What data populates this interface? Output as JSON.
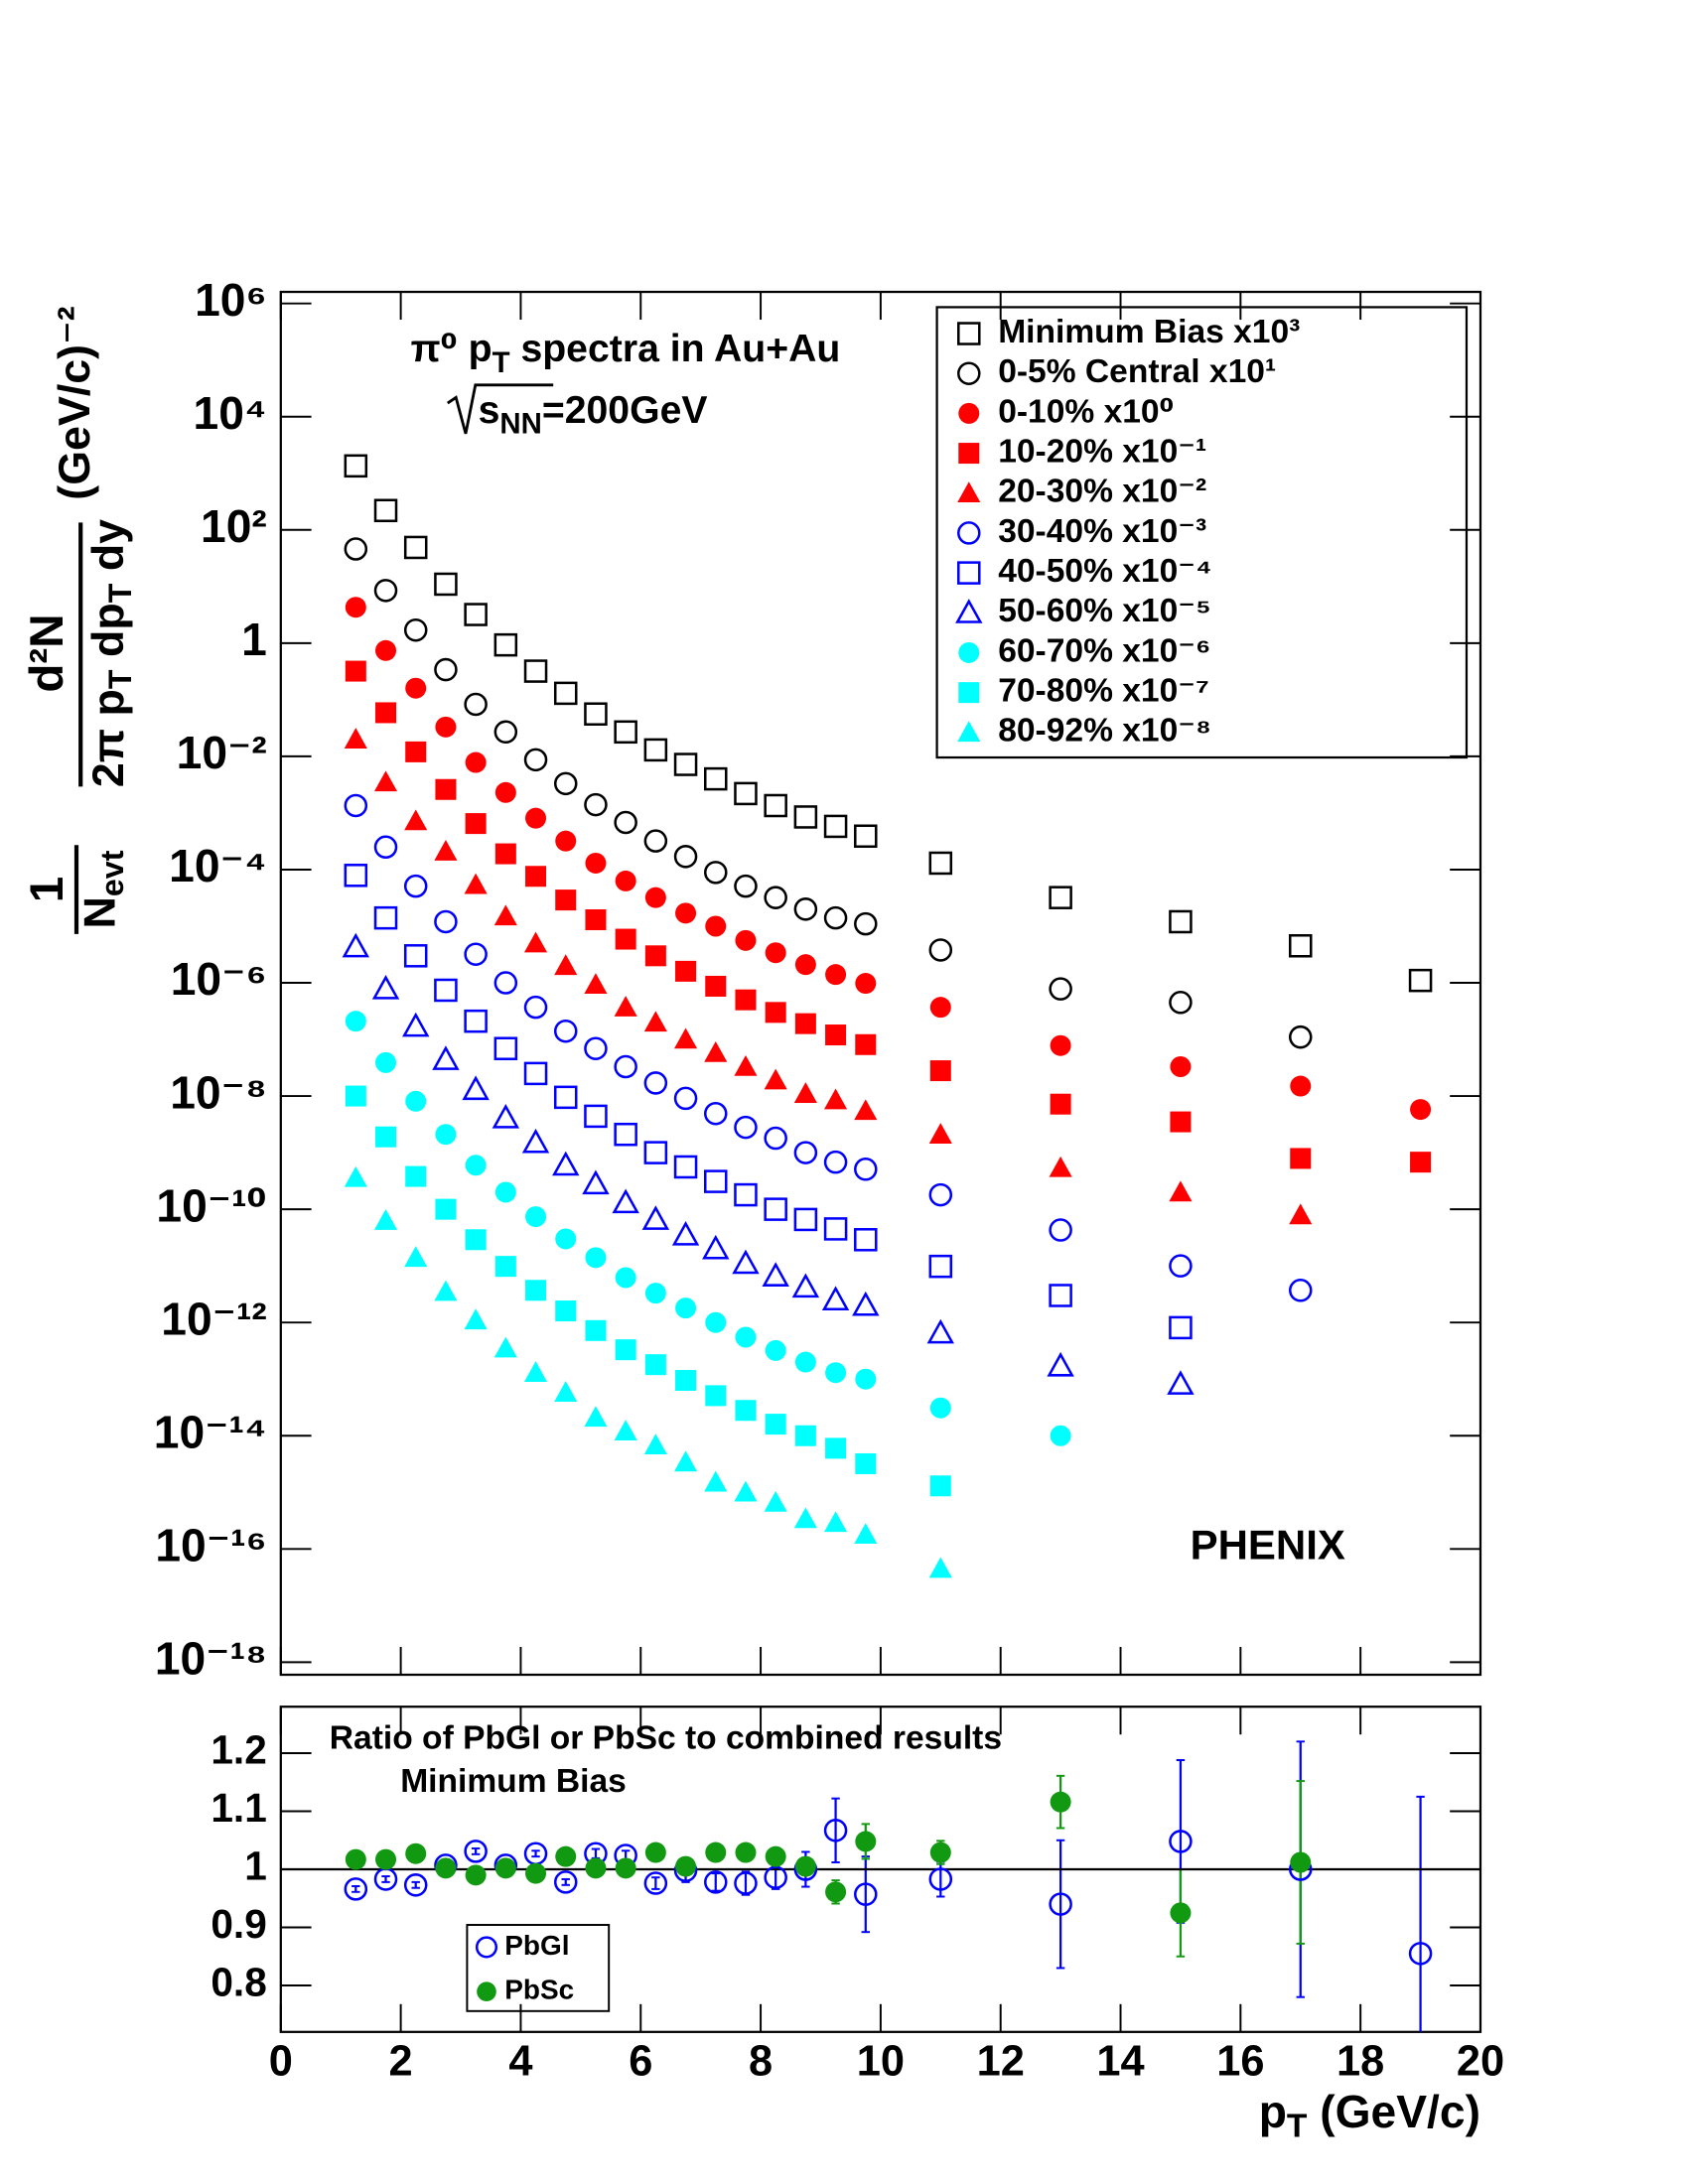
{
  "chart_data": [
    {
      "type": "scatter",
      "log_y": true,
      "title": [
        "π⁰ p",
        "T",
        " spectra in Au+Au"
      ],
      "subtitle": [
        "s",
        "NN",
        "=200GeV"
      ],
      "annotation": "PHENIX",
      "ylabel": {
        "factor_numerator": "1",
        "factor_denominator": [
          "N",
          "evt"
        ],
        "numerator": "d²N",
        "denominator": [
          "2π p",
          "T",
          " dp",
          "T",
          " dy"
        ],
        "unit": "(GeV/c)⁻²"
      },
      "xlim": [
        0,
        20
      ],
      "ylim": [
        6e-19,
        1600000.0
      ],
      "yticks": [
        {
          "value": 1000000.0,
          "label": "10⁶"
        },
        {
          "value": 10000.0,
          "label": "10⁴"
        },
        {
          "value": 100,
          "label": "10²"
        },
        1,
        {
          "value": 0.01,
          "label": "10⁻²"
        },
        {
          "value": 0.0001,
          "label": "10⁻⁴"
        },
        {
          "value": 1e-06,
          "label": "10⁻⁶"
        },
        {
          "value": 1e-08,
          "label": "10⁻⁸"
        },
        {
          "value": 1e-10,
          "label": "10⁻¹⁰"
        },
        {
          "value": 1e-12,
          "label": "10⁻¹²"
        },
        {
          "value": 1e-14,
          "label": "10⁻¹⁴"
        },
        {
          "value": 1e-16,
          "label": "10⁻¹⁶"
        },
        {
          "value": 1e-18,
          "label": "10⁻¹⁸"
        }
      ],
      "legend": "top-right",
      "x": [
        1.25,
        1.75,
        2.25,
        2.75,
        3.25,
        3.75,
        4.25,
        4.75,
        5.25,
        5.75,
        6.25,
        6.75,
        7.25,
        7.75,
        8.25,
        8.75,
        9.25,
        9.75,
        11,
        13,
        15,
        17,
        19
      ],
      "series": [
        {
          "name": "Minimum Bias x10³",
          "color": "#000000",
          "marker": "square-open",
          "values": [
            1350.0,
            220.0,
            49,
            11,
            3.2,
            0.93,
            0.32,
            0.13,
            0.056,
            0.027,
            0.013,
            0.0072,
            0.004,
            0.0022,
            0.00135,
            0.00085,
            0.00058,
            0.00039,
            0.00013,
            3.2e-05,
            1.2e-05,
            4.5e-06,
            1.1e-06
          ]
        },
        {
          "name": "0-5% Central x10¹",
          "color": "#000000",
          "marker": "circle-open",
          "values": [
            46,
            8.5,
            1.7,
            0.34,
            0.083,
            0.027,
            0.0087,
            0.0033,
            0.0014,
            0.00068,
            0.00032,
            0.00017,
            8.9e-05,
            5.1e-05,
            3.2e-05,
            2e-05,
            1.4e-05,
            1.1e-05,
            3.8e-06,
            7.8e-07,
            4.5e-07,
            1.1e-07,
            null
          ]
        },
        {
          "name": "0-10% x10⁰",
          "color": "#ff0000",
          "marker": "circle",
          "values": [
            4.3,
            0.74,
            0.16,
            0.033,
            0.0078,
            0.0023,
            0.00081,
            0.00032,
            0.00013,
            6.3e-05,
            3.2e-05,
            1.7e-05,
            1e-05,
            5.6e-06,
            3.4e-06,
            2.1e-06,
            1.4e-06,
            9.8e-07,
            3.7e-07,
            7.8e-08,
            3.3e-08,
            1.5e-08,
            5.8e-09
          ]
        },
        {
          "name": "10-20% x10⁻¹",
          "color": "#ff0000",
          "marker": "square",
          "values": [
            0.32,
            0.059,
            0.012,
            0.0026,
            0.00065,
            0.00019,
            7.6e-05,
            2.9e-05,
            1.3e-05,
            5.9e-06,
            3e-06,
            1.6e-06,
            8.7e-07,
            5e-07,
            3e-07,
            1.9e-07,
            1.2e-07,
            8.1e-08,
            2.8e-08,
            7.2e-09,
            3.5e-09,
            7.9e-10,
            6.8e-10
          ]
        },
        {
          "name": "20-30% x10⁻²",
          "color": "#ff0000",
          "marker": "triangle",
          "values": [
            0.02,
            0.0035,
            0.00072,
            0.00021,
            5.4e-05,
            1.5e-05,
            5e-06,
            2e-06,
            9.3e-07,
            3.7e-07,
            2e-07,
            1e-07,
            5.8e-08,
            3.3e-08,
            1.9e-08,
            1.1e-08,
            8.5e-09,
            5.5e-09,
            2.1e-09,
            5.4e-10,
            2e-10,
            7.9e-11,
            null
          ]
        },
        {
          "name": "30-40% x10⁻³",
          "color": "#0000ff",
          "marker": "circle-open",
          "values": [
            0.00135,
            0.00025,
            5.1e-05,
            1.2e-05,
            3.2e-06,
            1e-06,
            3.7e-07,
            1.4e-07,
            6.9e-08,
            3.3e-08,
            1.7e-08,
            9.1e-09,
            4.9e-09,
            2.8e-09,
            1.8e-09,
            1e-09,
            6.8e-10,
            5.1e-10,
            1.8e-10,
            4.3e-11,
            1e-11,
            3.7e-12,
            null
          ]
        },
        {
          "name": "40-50% x10⁻⁴",
          "color": "#0000ff",
          "marker": "square-open",
          "values": [
            7.9e-05,
            1.4e-05,
            3e-06,
            7.4e-07,
            2.1e-07,
            6.9e-08,
            2.5e-08,
            9.5e-09,
            4.4e-09,
            2.1e-09,
            1e-09,
            5.6e-10,
            3.1e-10,
            1.8e-10,
            1e-10,
            6.6e-11,
            4.5e-11,
            2.9e-11,
            9.8e-12,
            3e-12,
            8.1e-13,
            null,
            null
          ]
        },
        {
          "name": "50-60% x10⁻⁵",
          "color": "#0000ff",
          "marker": "triangle-open",
          "values": [
            4.3e-06,
            7.8e-07,
            1.7e-07,
            4.4e-08,
            1.3e-08,
            4.1e-09,
            1.5e-09,
            6e-10,
            2.8e-10,
            1.3e-10,
            6.6e-11,
            3.5e-11,
            2e-11,
            1.1e-11,
            6.6e-12,
            4.2e-12,
            2.5e-12,
            2e-12,
            6.5e-13,
            1.7e-13,
            8.1e-14,
            null,
            null
          ]
        },
        {
          "name": "60-70% x10⁻⁶",
          "color": "#00ffff",
          "marker": "circle",
          "values": [
            2.1e-07,
            3.9e-08,
            8.1e-09,
            2.1e-09,
            6e-10,
            2e-10,
            7.4e-11,
            3e-11,
            1.4e-11,
            6.2e-12,
            3.3e-12,
            1.8e-12,
            1e-12,
            5.5e-13,
            3.2e-13,
            2e-13,
            1.3e-13,
            1e-13,
            3.1e-14,
            1e-14,
            null,
            null,
            null
          ]
        },
        {
          "name": "70-80% x10⁻⁷",
          "color": "#00ffff",
          "marker": "square",
          "values": [
            1e-08,
            1.9e-09,
            3.8e-10,
            1e-10,
            2.9e-11,
            9.8e-12,
            3.7e-12,
            1.6e-12,
            7.2e-13,
            3.3e-13,
            1.8e-13,
            9.5e-14,
            5.1e-14,
            2.8e-14,
            1.6e-14,
            1e-14,
            6e-15,
            3.2e-15,
            1.3e-15,
            null,
            null,
            null,
            null
          ]
        },
        {
          "name": "80-92% x10⁻⁸",
          "color": "#00ffff",
          "marker": "triangle",
          "values": [
            3.6e-10,
            6.3e-11,
            1.4e-11,
            3.5e-12,
            1.1e-12,
            3.5e-13,
            1.3e-13,
            5.8e-14,
            2.1e-14,
            1.2e-14,
            6.8e-15,
            3.4e-15,
            1.5e-15,
            1e-15,
            6.6e-16,
            3.4e-16,
            2.9e-16,
            1.8e-16,
            4.5e-17,
            null,
            null,
            null,
            null
          ]
        }
      ]
    },
    {
      "type": "scatter",
      "annotations": [
        "Ratio of PbGl or PbSc to combined results",
        "Minimum Bias"
      ],
      "xlabel": [
        "p",
        "T",
        " (GeV/c)"
      ],
      "xlim": [
        0,
        20
      ],
      "xticks": [
        0,
        2,
        4,
        6,
        8,
        10,
        12,
        14,
        16,
        18,
        20
      ],
      "ylim": [
        0.72,
        1.28
      ],
      "yticks": [
        0.8,
        0.9,
        1,
        1.1,
        1.2
      ],
      "reference_line": 1,
      "legend": "bottom-left",
      "x": [
        1.25,
        1.75,
        2.25,
        2.75,
        3.25,
        3.75,
        4.25,
        4.75,
        5.25,
        5.75,
        6.25,
        6.75,
        7.25,
        7.75,
        8.25,
        8.75,
        9.25,
        9.75,
        11,
        13,
        15,
        17,
        19
      ],
      "series": [
        {
          "name": "PbGl",
          "color": "#0000ff",
          "marker": "circle-open",
          "values": [
            0.966,
            0.983,
            0.973,
            1.007,
            1.031,
            1.007,
            1.027,
            0.978,
            1.027,
            1.024,
            0.976,
            0.998,
            0.978,
            0.976,
            0.986,
            1.0,
            1.067,
            0.957,
            0.983,
            0.94,
            1.048,
            1.0,
            0.855
          ],
          "errors": [
            0.005,
            0.005,
            0.005,
            0.005,
            0.005,
            0.005,
            0.005,
            0.005,
            0.008,
            0.008,
            0.01,
            0.02,
            0.015,
            0.02,
            0.02,
            0.03,
            0.055,
            0.065,
            0.03,
            0.11,
            0.14,
            0.22,
            0.27
          ]
        },
        {
          "name": "PbSc",
          "color": "#119911",
          "marker": "circle",
          "values": [
            1.017,
            1.017,
            1.027,
            1.002,
            0.99,
            1.002,
            0.993,
            1.022,
            1.002,
            1.002,
            1.029,
            1.005,
            1.029,
            1.029,
            1.022,
            1.005,
            0.961,
            1.048,
            1.029,
            1.116,
            0.925,
            1.012,
            null
          ],
          "errors": [
            0.005,
            0.005,
            0.005,
            0.005,
            0.005,
            0.005,
            0.005,
            0.005,
            0.005,
            0.005,
            0.01,
            0.008,
            0.01,
            0.012,
            0.015,
            0.015,
            0.02,
            0.03,
            0.02,
            0.045,
            0.075,
            0.14,
            null
          ]
        }
      ]
    }
  ]
}
